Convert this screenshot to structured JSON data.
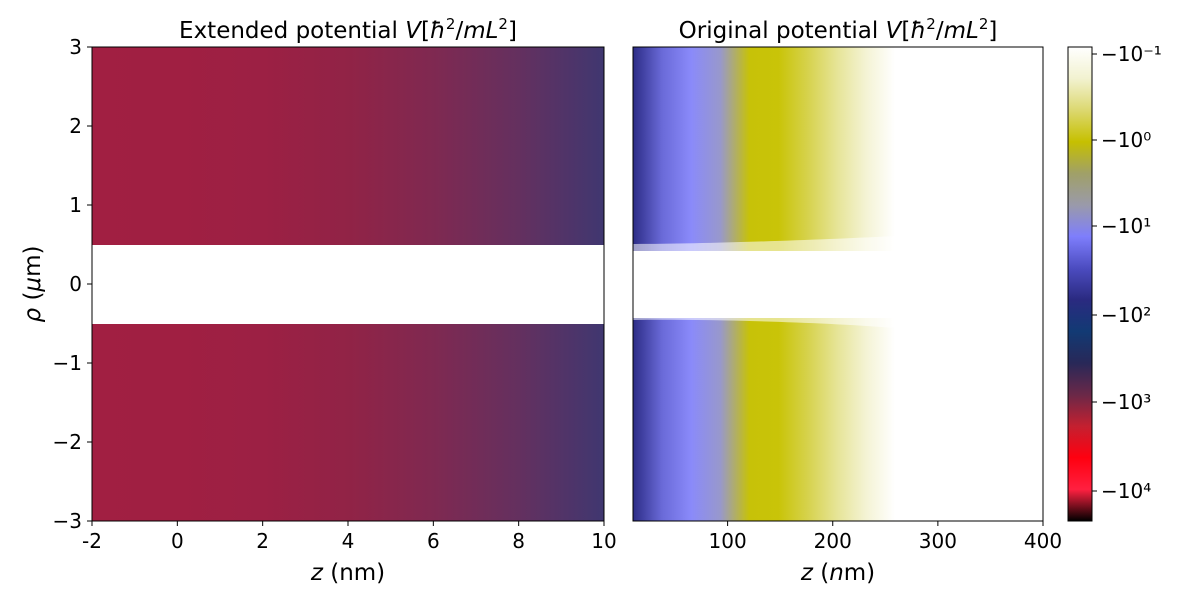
{
  "chart_data": [
    {
      "type": "heatmap",
      "title": "Extended potential V[ħ²/mL²]",
      "xlabel": "z (nm)",
      "ylabel": "ρ (μm)",
      "xlim": [
        -2,
        10
      ],
      "ylim": [
        -3,
        3
      ],
      "x_ticks": [
        "-2",
        "0",
        "2",
        "4",
        "6",
        "8",
        "10"
      ],
      "y_ticks": [
        "3",
        "2",
        "1",
        "0",
        "−1",
        "−2",
        "−3"
      ],
      "empty_band_rho": [
        -0.5,
        0.5
      ],
      "color_gradient": [
        "#a11f42",
        "#a01f42",
        "#9c2044",
        "#912346",
        "#7f2951",
        "#64305f",
        "#403770"
      ]
    },
    {
      "type": "heatmap",
      "title": "Original potential V[ħ²/mL²]",
      "xlabel": "z (nm)",
      "xlim": [
        10,
        400
      ],
      "ylim": [
        -3,
        3
      ],
      "x_ticks": [
        "100",
        "200",
        "300",
        "400"
      ],
      "empty_band_rho": [
        -0.5,
        0.5
      ],
      "color_gradient": [
        "#2c2c86",
        "#6a6ad8",
        "#8a8afa",
        "#9898cc",
        "#c7c208",
        "#c9c408",
        "#d6d24c",
        "#e6e496",
        "#f4f3d4",
        "#ffffff"
      ]
    }
  ],
  "colorbar": {
    "scale": "symlog",
    "tick_labels": [
      "−10⁻¹",
      "−10⁰",
      "−10¹",
      "−10²",
      "−10³",
      "−10⁴"
    ],
    "colors": [
      "#ffffff",
      "#f2f2d0",
      "#dcd870",
      "#c6c000",
      "#a0a068",
      "#9a9aaa",
      "#7e7efc",
      "#4c4cc0",
      "#2a2a80",
      "#123a74",
      "#282858",
      "#6a2848",
      "#c42030",
      "#ff0010",
      "#ff2040",
      "#000000"
    ]
  }
}
